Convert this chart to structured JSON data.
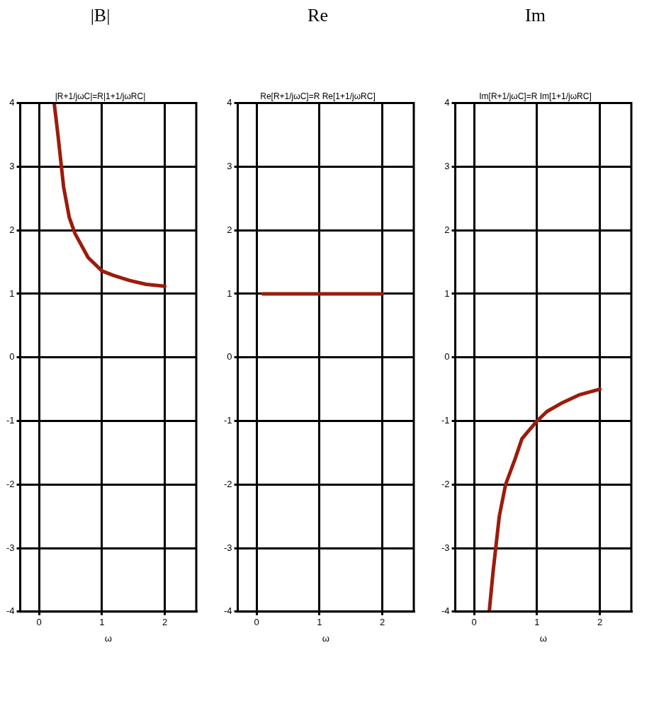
{
  "chart_data": [
    {
      "type": "line",
      "title": "|B|",
      "subtitle": "|R+1/jωC|=R|1+1/jωRC|",
      "xlabel": "ω",
      "xlim": [
        -0.3,
        2.5
      ],
      "xticks": [
        0,
        1,
        2
      ],
      "ylim": [
        -4,
        4
      ],
      "yticks": [
        -4,
        -3,
        -2,
        -1,
        0,
        1,
        2,
        3,
        4
      ],
      "grid": true,
      "marker": "none",
      "line_style": "solid",
      "series": [
        {
          "color": "#9b1c0c",
          "x": [
            0.24,
            0.3,
            0.39,
            0.48,
            0.57,
            0.78,
            1.0,
            1.18,
            1.44,
            1.7,
            2.0
          ],
          "values": [
            4,
            3.5,
            2.68,
            2.2,
            1.95,
            1.57,
            1.36,
            1.29,
            1.21,
            1.15,
            1.12
          ]
        }
      ]
    },
    {
      "type": "line",
      "title": "Re",
      "subtitle": "Re[R+1/jωC]=R Re[1+1/jωRC]",
      "xlabel": "ω",
      "xlim": [
        -0.3,
        2.5
      ],
      "xticks": [
        0,
        1,
        2
      ],
      "ylim": [
        -4,
        4
      ],
      "yticks": [
        -4,
        -3,
        -2,
        -1,
        0,
        1,
        2,
        3,
        4
      ],
      "grid": true,
      "marker": "none",
      "line_style": "solid",
      "series": [
        {
          "color": "#9b1c0c",
          "x": [
            0.1,
            2.0
          ],
          "values": [
            1,
            1
          ]
        }
      ]
    },
    {
      "type": "line",
      "title": "Im",
      "subtitle": "Im[R+1/jωC]=R Im[1+1/jωRC]",
      "xlabel": "ω",
      "xlim": [
        -0.3,
        2.5
      ],
      "xticks": [
        0,
        1,
        2
      ],
      "ylim": [
        -4,
        4
      ],
      "yticks": [
        -4,
        -3,
        -2,
        -1,
        0,
        1,
        2,
        3,
        4
      ],
      "grid": true,
      "marker": "none",
      "line_style": "solid",
      "series": [
        {
          "color": "#9b1c0c",
          "x": [
            0.24,
            0.3,
            0.4,
            0.5,
            0.65,
            0.76,
            1.0,
            1.16,
            1.41,
            1.67,
            2.0
          ],
          "values": [
            -4,
            -3.38,
            -2.5,
            -2.0,
            -1.6,
            -1.28,
            -1,
            -0.85,
            -0.71,
            -0.59,
            -0.5
          ]
        }
      ]
    }
  ]
}
